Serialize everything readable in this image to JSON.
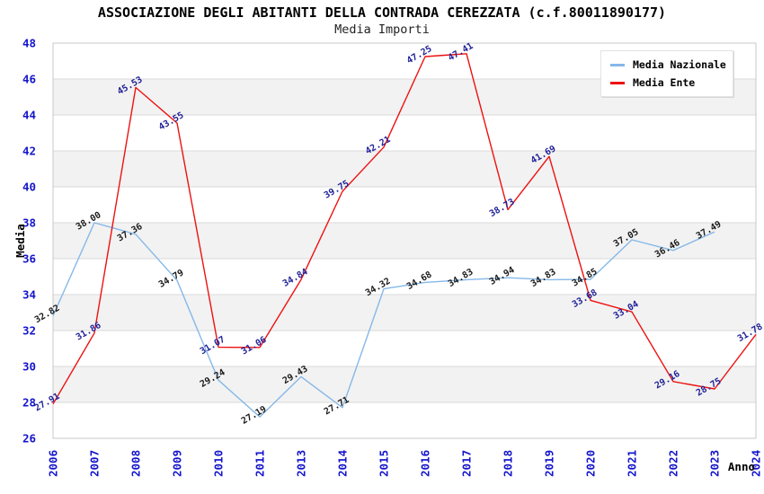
{
  "chart_data": {
    "type": "line",
    "title": "ASSOCIAZIONE DEGLI ABITANTI DELLA CONTRADA CEREZZATA (c.f.80011890177)",
    "subtitle": "Media Importi",
    "xlabel": "Anno",
    "ylabel": "Media",
    "ylim": [
      26,
      48
    ],
    "ytick_step": 2,
    "yticks": [
      26,
      28,
      30,
      32,
      34,
      36,
      38,
      40,
      42,
      44,
      46,
      48
    ],
    "grid": "horizontal-bands",
    "legend_position": "top-right",
    "categories": [
      "2006",
      "2007",
      "2008",
      "2009",
      "2010",
      "2011",
      "2013",
      "2014",
      "2015",
      "2016",
      "2017",
      "2018",
      "2019",
      "2020",
      "2021",
      "2022",
      "2023",
      "2024"
    ],
    "series": [
      {
        "name": "Media Nazionale",
        "color": "#85b8e8",
        "label_color": "#1a1a1a",
        "values": [
          32.82,
          38.0,
          37.36,
          34.79,
          29.24,
          27.19,
          29.43,
          27.71,
          34.32,
          34.68,
          34.83,
          34.94,
          34.83,
          34.85,
          37.05,
          36.46,
          37.49,
          null
        ]
      },
      {
        "name": "Media Ente",
        "color": "#ee1111",
        "label_color": "#222299",
        "values": [
          27.91,
          31.86,
          45.53,
          43.55,
          31.07,
          31.06,
          34.84,
          39.75,
          42.21,
          47.25,
          47.41,
          38.73,
          41.69,
          33.68,
          33.04,
          29.16,
          28.75,
          31.78
        ]
      }
    ],
    "colors": {
      "tick": "#1515cc",
      "axis_title": "#000000",
      "stripe": "#f2f2f2",
      "grid": "#d9d9d9",
      "border": "#c8c8c8",
      "background": "#ffffff"
    }
  }
}
